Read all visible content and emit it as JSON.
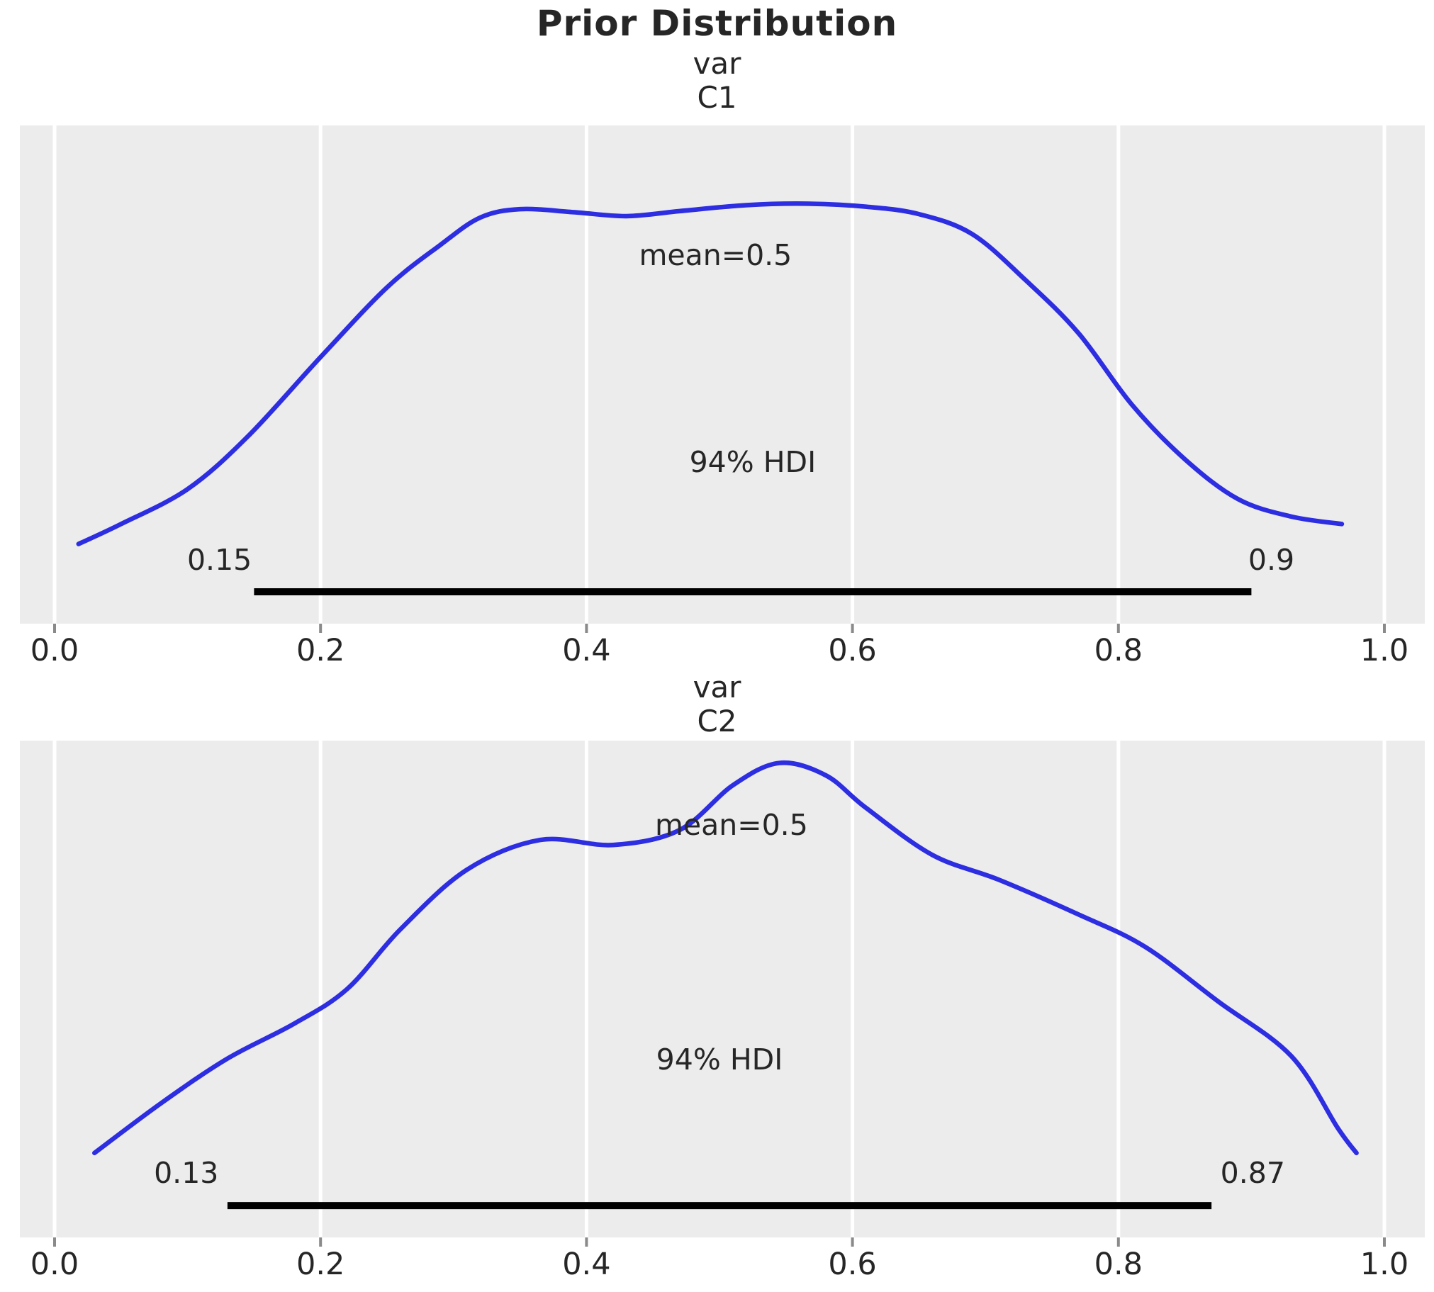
{
  "title": "Prior Distribution",
  "colors": {
    "curve": "#2d2de1",
    "plot_bg": "#ececec",
    "grid": "#ffffff",
    "hdi_line": "#000000",
    "text": "#262626",
    "tick_mark": "#8a8a8a",
    "figure_bg": "#ffffff"
  },
  "chart_data": [
    {
      "type": "line",
      "kind": "kde-density",
      "var_label": "var",
      "coord_label": "C1",
      "title": "var C1",
      "x_ticks": [
        "0.0",
        "0.2",
        "0.4",
        "0.6",
        "0.8",
        "1.0"
      ],
      "x_range": [
        0.0,
        1.0
      ],
      "grid": "vertical-only",
      "mean_text": "mean=0.5",
      "mean_value": 0.5,
      "hdi_text": "94% HDI",
      "hdi_prob": 0.94,
      "hdi_lower": 0.15,
      "hdi_upper": 0.9,
      "hdi_lower_label": "0.15",
      "hdi_upper_label": "0.9",
      "curve": {
        "x": [
          0.018,
          0.05,
          0.1,
          0.145,
          0.2,
          0.25,
          0.29,
          0.32,
          0.35,
          0.39,
          0.43,
          0.47,
          0.52,
          0.565,
          0.61,
          0.65,
          0.69,
          0.73,
          0.77,
          0.81,
          0.85,
          0.89,
          0.93,
          0.968
        ],
        "density": [
          0.16,
          0.2,
          0.27,
          0.375,
          0.535,
          0.675,
          0.76,
          0.815,
          0.832,
          0.826,
          0.818,
          0.828,
          0.84,
          0.843,
          0.837,
          0.822,
          0.782,
          0.69,
          0.583,
          0.44,
          0.33,
          0.25,
          0.215,
          0.2
        ]
      },
      "mean_pos": {
        "x": 0.497,
        "y": 0.74
      },
      "hdi_text_pos": {
        "x": 0.525,
        "y": 0.325
      },
      "lower_label_pos": {
        "x": 0.124,
        "y": 0.128
      },
      "upper_label_pos": {
        "x": 0.915,
        "y": 0.128
      },
      "hdi_line_y": 0.064
    },
    {
      "type": "line",
      "kind": "kde-density",
      "var_label": "var",
      "coord_label": "C2",
      "title": "var C2",
      "x_ticks": [
        "0.0",
        "0.2",
        "0.4",
        "0.6",
        "0.8",
        "1.0"
      ],
      "x_range": [
        0.0,
        1.0
      ],
      "grid": "vertical-only",
      "mean_text": "mean=0.5",
      "mean_value": 0.5,
      "hdi_text": "94% HDI",
      "hdi_prob": 0.94,
      "hdi_lower": 0.13,
      "hdi_upper": 0.87,
      "hdi_lower_label": "0.13",
      "hdi_upper_label": "0.87",
      "curve": {
        "x": [
          0.03,
          0.08,
          0.13,
          0.18,
          0.22,
          0.26,
          0.31,
          0.365,
          0.42,
          0.47,
          0.51,
          0.545,
          0.58,
          0.61,
          0.66,
          0.71,
          0.77,
          0.82,
          0.875,
          0.93,
          0.965,
          0.979
        ],
        "density": [
          0.17,
          0.27,
          0.36,
          0.43,
          0.5,
          0.62,
          0.74,
          0.8,
          0.79,
          0.82,
          0.91,
          0.955,
          0.93,
          0.865,
          0.77,
          0.72,
          0.65,
          0.585,
          0.475,
          0.365,
          0.22,
          0.17
        ]
      },
      "mean_pos": {
        "x": 0.509,
        "y": 0.83
      },
      "hdi_text_pos": {
        "x": 0.5,
        "y": 0.358
      },
      "lower_label_pos": {
        "x": 0.099,
        "y": 0.13
      },
      "upper_label_pos": {
        "x": 0.901,
        "y": 0.13
      },
      "hdi_line_y": 0.064
    }
  ]
}
